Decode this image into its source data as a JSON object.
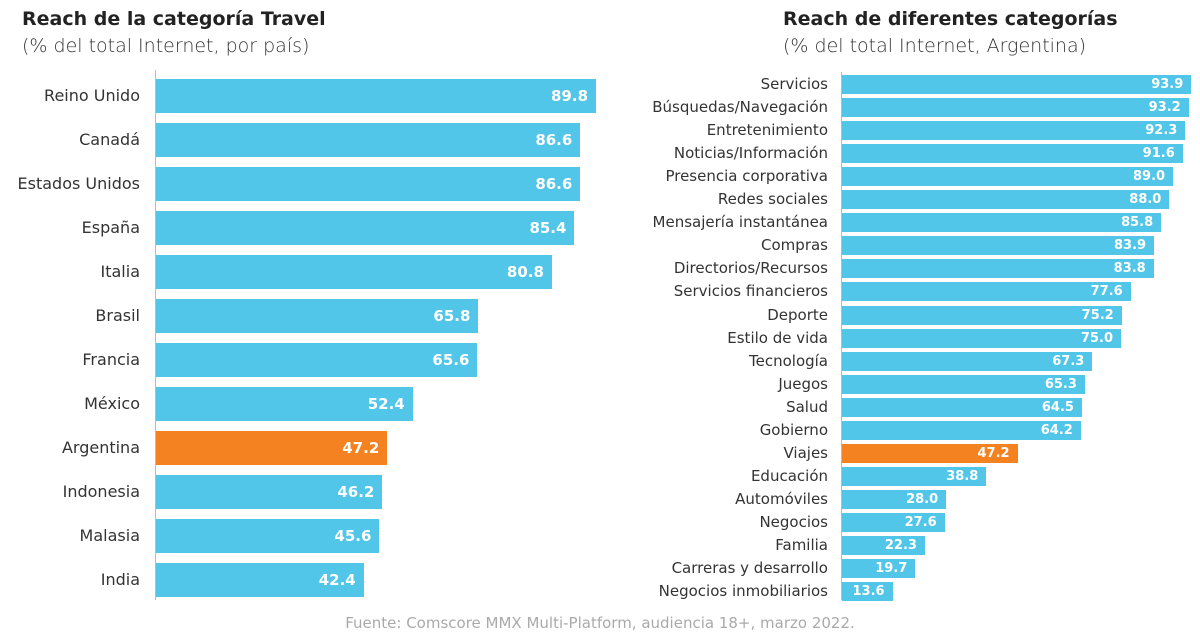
{
  "colors": {
    "bar": "#52c6e8",
    "highlight": "#f58220"
  },
  "source": "Fuente: Comscore MMX Multi-Platform, audiencia 18+, marzo 2022.",
  "chart_data": [
    {
      "type": "bar",
      "orientation": "horizontal",
      "title": "Reach de la categoría Travel",
      "subtitle": "(% del total Internet, por país)",
      "categories": [
        "Reino Unido",
        "Canadá",
        "Estados Unidos",
        "España",
        "Italia",
        "Brasil",
        "Francia",
        "México",
        "Argentina",
        "Indonesia",
        "Malasia",
        "India"
      ],
      "values": [
        89.8,
        86.6,
        86.6,
        85.4,
        80.8,
        65.8,
        65.6,
        52.4,
        47.2,
        46.2,
        45.6,
        42.4
      ],
      "labels": [
        "89.8",
        "86.6",
        "86.6",
        "85.4",
        "80.8",
        "65.8",
        "65.6",
        "52.4",
        "47.2",
        "46.2",
        "45.6",
        "42.4"
      ],
      "highlight": "Argentina",
      "grid": false
    },
    {
      "type": "bar",
      "orientation": "horizontal",
      "title": "Reach de diferentes categorías",
      "subtitle": "(% del total Internet, Argentina)",
      "categories": [
        "Servicios",
        "Búsquedas/Navegación",
        "Entretenimiento",
        "Noticias/Información",
        "Presencia corporativa",
        "Redes sociales",
        "Mensajería instantánea",
        "Compras",
        "Directorios/Recursos",
        "Servicios financieros",
        "Deporte",
        "Estilo de vida",
        "Tecnología",
        "Juegos",
        "Salud",
        "Gobierno",
        "Viajes",
        "Educación",
        "Automóviles",
        "Negocios",
        "Familia",
        "Carreras y desarrollo",
        "Negocios inmobiliarios"
      ],
      "values": [
        93.9,
        93.2,
        92.3,
        91.6,
        89.0,
        88.0,
        85.8,
        83.9,
        83.8,
        77.6,
        75.2,
        75.0,
        67.3,
        65.3,
        64.5,
        64.2,
        47.2,
        38.8,
        28.0,
        27.6,
        22.3,
        19.7,
        13.6
      ],
      "labels": [
        "93.9",
        "93.2",
        "92.3",
        "91.6",
        "89.0",
        "88.0",
        "85.8",
        "83.9",
        "83.8",
        "77.6",
        "75.2",
        "75.0",
        "67.3",
        "65.3",
        "64.5",
        "64.2",
        "47.2",
        "38.8",
        "28.0",
        "27.6",
        "22.3",
        "19.7",
        "13.6"
      ],
      "highlight": "Viajes",
      "grid": false
    }
  ]
}
